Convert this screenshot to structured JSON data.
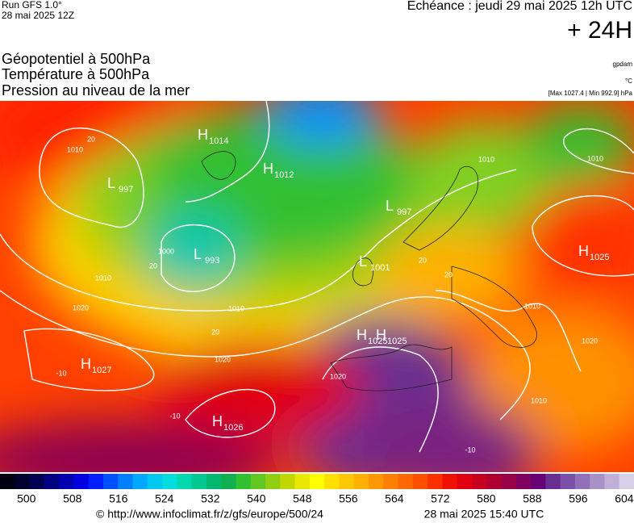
{
  "header": {
    "run": "Run GFS 1.0°",
    "run_date": "28 mai 2025 12Z",
    "echeance": "Echéance : jeudi 29 mai 2025 12h UTC",
    "lead": "+ 24H"
  },
  "titles": [
    "Géopotentiel à 500hPa",
    "Température à 500hPa",
    "Pression au niveau de la mer"
  ],
  "units": {
    "geopotential": "gpdam",
    "temperature": "°C",
    "range": "[Max 1027.4 | Min 992.9] hPa"
  },
  "centers": [
    {
      "letter": "H",
      "value": "1014"
    },
    {
      "letter": "L",
      "value": "997"
    },
    {
      "letter": "H",
      "value": "1012"
    },
    {
      "letter": "L",
      "value": "997"
    },
    {
      "letter": "L",
      "value": "993"
    },
    {
      "letter": "L",
      "value": "1001"
    },
    {
      "letter": "H",
      "value": "1025"
    },
    {
      "letter": "H",
      "value": "1025"
    },
    {
      "letter": "H",
      "value": "1025"
    },
    {
      "letter": "H",
      "value": "1027"
    },
    {
      "letter": "H",
      "value": "1026"
    }
  ],
  "isobar_labels": [
    "1010",
    "20",
    "1000",
    "20",
    "1010",
    "1020",
    "1010",
    "20",
    "1020",
    "-10",
    "-10",
    "1020",
    "1010",
    "1010",
    "1020",
    "1010",
    "1010",
    "-10",
    "20",
    "20"
  ],
  "colorbar": {
    "lim": [
      495.4,
      605.7
    ],
    "ticks": [
      500,
      508,
      516,
      524,
      532,
      540,
      548,
      556,
      564,
      572,
      580,
      588,
      596,
      604
    ],
    "colors": [
      "#000010",
      "#000030",
      "#000050",
      "#000080",
      "#0000b0",
      "#0000e0",
      "#0020ff",
      "#0050ff",
      "#0080ff",
      "#00a8ff",
      "#00c8f0",
      "#00dce0",
      "#00d8b0",
      "#00c890",
      "#00b870",
      "#10b050",
      "#30c030",
      "#60c820",
      "#90d010",
      "#c0d800",
      "#e8e800",
      "#ffff00",
      "#ffe000",
      "#ffc800",
      "#ffb000",
      "#ff9800",
      "#ff8000",
      "#ff6800",
      "#ff5000",
      "#ff3000",
      "#f01000",
      "#e00010",
      "#c80020",
      "#b00030",
      "#980048",
      "#800060",
      "#680078",
      "#6a2d90",
      "#7a50a8",
      "#9070b8",
      "#a890c8",
      "#c0b0d8",
      "#d8d0e8"
    ]
  },
  "footer": {
    "url": "© http://www.infoclimat.fr/z/gfs/europe/500/24",
    "date": "28 mai 2025 15:40 UTC"
  }
}
